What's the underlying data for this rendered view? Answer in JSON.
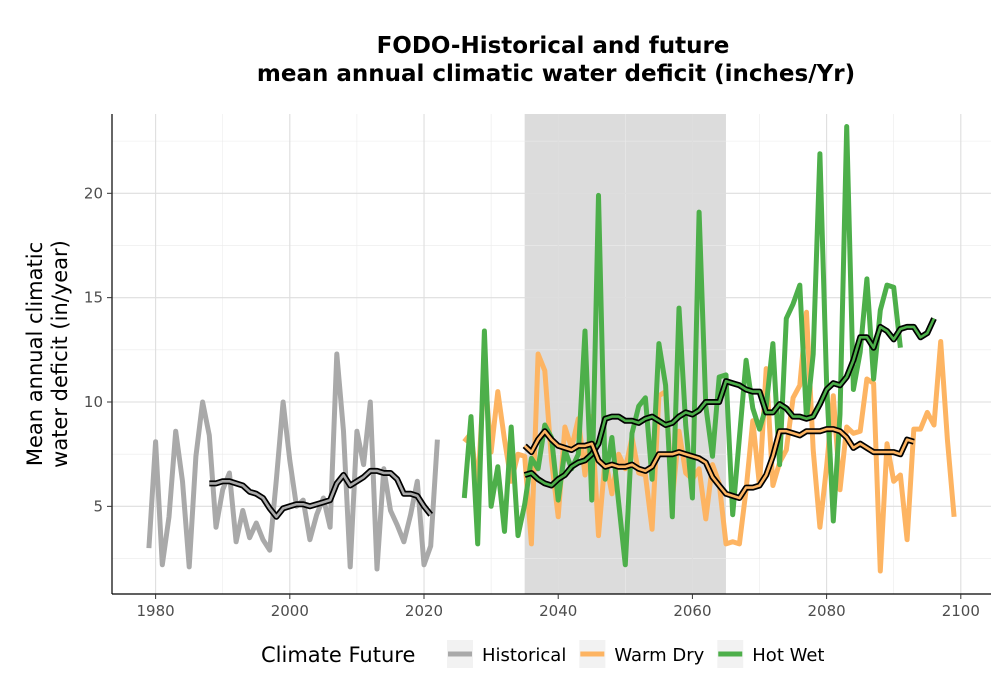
{
  "chart_data": {
    "type": "line",
    "title": [
      "FODO-Historical and future",
      "mean annual climatic water deficit (inches/Yr)"
    ],
    "ylabel": [
      "Mean annual climatic",
      "water deficit (in/year)"
    ],
    "xlabel": "",
    "xlim": [
      1973.5,
      2104.5
    ],
    "ylim": [
      0.8,
      23.8
    ],
    "x_ticks": [
      1980,
      2000,
      2020,
      2040,
      2060,
      2080,
      2100
    ],
    "y_ticks": [
      5,
      10,
      15,
      20
    ],
    "grid": true,
    "highlight_band": {
      "x": [
        2035,
        2065
      ],
      "color": "#dcdcdc"
    },
    "legend": {
      "title": "Climate Future",
      "position": "bottom"
    },
    "series": [
      {
        "name": "Historical",
        "color": "#a9a9a9",
        "x_start": 1979,
        "values": [
          3.0,
          8.1,
          2.2,
          4.5,
          8.6,
          6.2,
          2.1,
          7.4,
          10.0,
          8.4,
          4.0,
          5.8,
          6.6,
          3.3,
          4.8,
          3.5,
          4.2,
          3.4,
          2.9,
          6.3,
          10.0,
          7.2,
          5.0,
          5.3,
          3.4,
          4.6,
          5.4,
          4.0,
          12.3,
          8.6,
          2.1,
          8.6,
          7.0,
          10.0,
          2.0,
          6.8,
          4.8,
          4.1,
          3.3,
          4.6,
          6.2,
          2.2,
          3.1,
          8.2
        ]
      },
      {
        "name": "Warm Dry",
        "color": "#fdb462",
        "x_start": 2026,
        "values": [
          8.1,
          8.5,
          5.8,
          11.6,
          7.6,
          10.5,
          8.2,
          6.2,
          7.5,
          7.4,
          3.2,
          12.3,
          11.5,
          7.2,
          4.5,
          8.8,
          7.8,
          9.2,
          6.5,
          9.3,
          3.6,
          7.3,
          5.6,
          7.5,
          6.8,
          8.3,
          6.6,
          6.5,
          3.9,
          10.3,
          10.5,
          5.3,
          8.6,
          6.6,
          6.3,
          6.8,
          4.4,
          7.0,
          6.1,
          3.2,
          3.3,
          3.2,
          5.8,
          9.1,
          6.0,
          11.6,
          6.0,
          7.1,
          7.7,
          10.2,
          10.8,
          14.3,
          7.7,
          4.0,
          6.9,
          10.3,
          5.8,
          8.8,
          8.5,
          8.6,
          11.1,
          10.9,
          1.9,
          8.0,
          6.2,
          6.5,
          3.4,
          8.7,
          8.7,
          9.5,
          8.9,
          12.9,
          8.2,
          4.5
        ]
      },
      {
        "name": "Hot Wet",
        "color": "#4daf4a",
        "x_start": 2026,
        "values": [
          5.4,
          9.3,
          3.2,
          13.4,
          5.0,
          6.9,
          3.8,
          8.8,
          3.6,
          5.1,
          7.3,
          6.8,
          8.9,
          8.3,
          5.3,
          7.7,
          6.8,
          7.5,
          13.4,
          5.3,
          19.9,
          6.3,
          8.3,
          5.2,
          2.2,
          8.5,
          9.8,
          10.2,
          6.3,
          12.8,
          10.8,
          4.5,
          14.5,
          8.9,
          5.4,
          19.1,
          9.8,
          7.4,
          11.2,
          11.3,
          4.6,
          8.3,
          12.0,
          9.7,
          8.7,
          9.8,
          12.8,
          7.0,
          14.0,
          14.7,
          15.6,
          9.2,
          12.3,
          21.9,
          10.9,
          4.3,
          9.4,
          23.2,
          10.6,
          12.4,
          15.9,
          11.1,
          14.4,
          15.6,
          15.5,
          12.6
        ]
      }
    ],
    "smoothed": [
      {
        "name": "",
        "x_start": 1988,
        "values": [
          6.1,
          6.1,
          6.2,
          6.2,
          6.1,
          6.0,
          5.7,
          5.6,
          5.4,
          4.9,
          4.5,
          4.9,
          5.0,
          5.1,
          5.1,
          5.0,
          5.1,
          5.2,
          5.3,
          6.1,
          6.5,
          6.0,
          6.2,
          6.4,
          6.7,
          6.7,
          6.6,
          6.6,
          6.3,
          5.6,
          5.6,
          5.5,
          5.0,
          4.6
        ]
      },
      {
        "name": "",
        "x_start": 2035,
        "values": [
          6.5,
          6.6,
          6.3,
          6.1,
          6.0,
          6.3,
          6.5,
          6.9,
          7.1,
          7.2,
          7.5,
          8.0,
          9.2,
          9.3,
          9.3,
          9.1,
          9.1,
          9.0,
          9.2,
          9.3,
          9.1,
          8.9,
          9.0,
          9.3,
          9.5,
          9.4,
          9.6,
          10.0,
          10.0,
          10.0,
          11.0,
          10.9,
          10.8,
          10.6,
          10.5,
          10.5,
          9.5,
          9.5,
          9.9,
          9.7,
          9.3,
          9.3,
          9.2,
          9.3,
          9.9,
          10.6,
          10.9,
          10.8,
          11.2,
          12.0,
          13.1,
          13.1,
          12.6,
          13.6,
          13.4,
          13.0,
          13.5,
          13.6,
          13.6,
          13.1,
          13.3,
          14.0
        ]
      },
      {
        "name": "",
        "x_start": 2035,
        "values": [
          7.9,
          7.6,
          8.2,
          8.6,
          8.2,
          7.9,
          7.8,
          7.7,
          7.9,
          7.9,
          8.0,
          7.2,
          6.9,
          7.0,
          6.9,
          6.9,
          7.0,
          6.8,
          6.7,
          6.9,
          7.5,
          7.5,
          7.5,
          7.6,
          7.5,
          7.4,
          7.3,
          7.1,
          6.4,
          6.0,
          5.6,
          5.5,
          5.4,
          5.9,
          5.9,
          6.0,
          6.5,
          7.4,
          8.6,
          8.6,
          8.5,
          8.4,
          8.6,
          8.6,
          8.6,
          8.7,
          8.7,
          8.6,
          8.3,
          7.8,
          8.0,
          7.8,
          7.6,
          7.6,
          7.6,
          7.6,
          7.5,
          8.2,
          8.1
        ]
      }
    ]
  }
}
